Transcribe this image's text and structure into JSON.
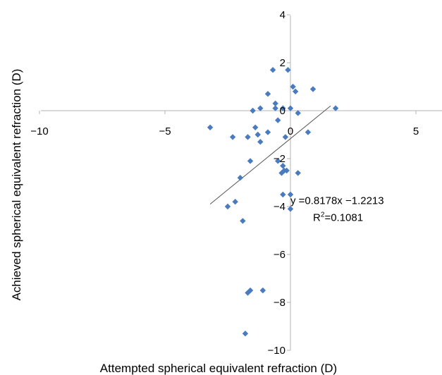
{
  "chart_data": {
    "type": "scatter",
    "title": "",
    "xlabel": "Attempted spherical equivalent refraction (D)",
    "ylabel": "Achieved spherical equivalent refraction (D)",
    "xlim": [
      -10,
      6
    ],
    "ylim": [
      -10,
      4
    ],
    "x_ticks": [
      -10,
      -5,
      0,
      5
    ],
    "y_ticks": [
      -10,
      -8,
      -6,
      -4,
      -2,
      0,
      2,
      4
    ],
    "grid": false,
    "legend": "none",
    "marker_color": "#4a7bbf",
    "axis_color": "#b3b3b3",
    "trendline_color": "#555555",
    "series": [
      {
        "x": [
          -3.2,
          -2.3,
          -1.7,
          -1.5,
          -1.4,
          -1.3,
          -1.2,
          -1.2,
          -0.9,
          -0.9,
          -0.7,
          -0.6,
          -0.6,
          -0.5,
          -0.2,
          -0.1,
          0.0,
          0.1,
          0.2,
          -0.3,
          -0.25,
          -0.15,
          -2.0,
          -1.6,
          -0.5,
          -0.35,
          -0.3,
          0.0,
          0.0,
          0.3,
          0.7,
          0.9,
          1.8,
          -0.3,
          0.3,
          -1.9,
          -2.5,
          -2.2,
          -1.1,
          -1.7,
          -1.6,
          -1.8
        ],
        "y": [
          -0.7,
          -1.1,
          -1.1,
          0.0,
          -0.7,
          -1.0,
          -1.3,
          0.1,
          -0.9,
          0.7,
          1.7,
          0.3,
          0.1,
          -0.4,
          -1.1,
          1.7,
          0.1,
          1.0,
          0.8,
          -2.3,
          -2.5,
          -2.5,
          -2.8,
          -2.1,
          -2.1,
          -2.6,
          -3.5,
          -3.5,
          -4.1,
          -2.6,
          -0.9,
          0.9,
          0.1,
          0.1,
          -0.1,
          -4.6,
          -4.0,
          -3.8,
          -7.5,
          -7.6,
          -7.5,
          -9.3
        ]
      }
    ],
    "trendline": {
      "x": [
        -3.2,
        1.6
      ],
      "y": [
        -3.9,
        0.2
      ]
    },
    "annotations": [
      {
        "text": "y =0.8178x −1.2213",
        "x": 0.0,
        "y": -3.9
      },
      {
        "text": "R",
        "sup": "2",
        "tail": "=0.1081",
        "x": 0.9,
        "y": -4.6
      }
    ]
  }
}
